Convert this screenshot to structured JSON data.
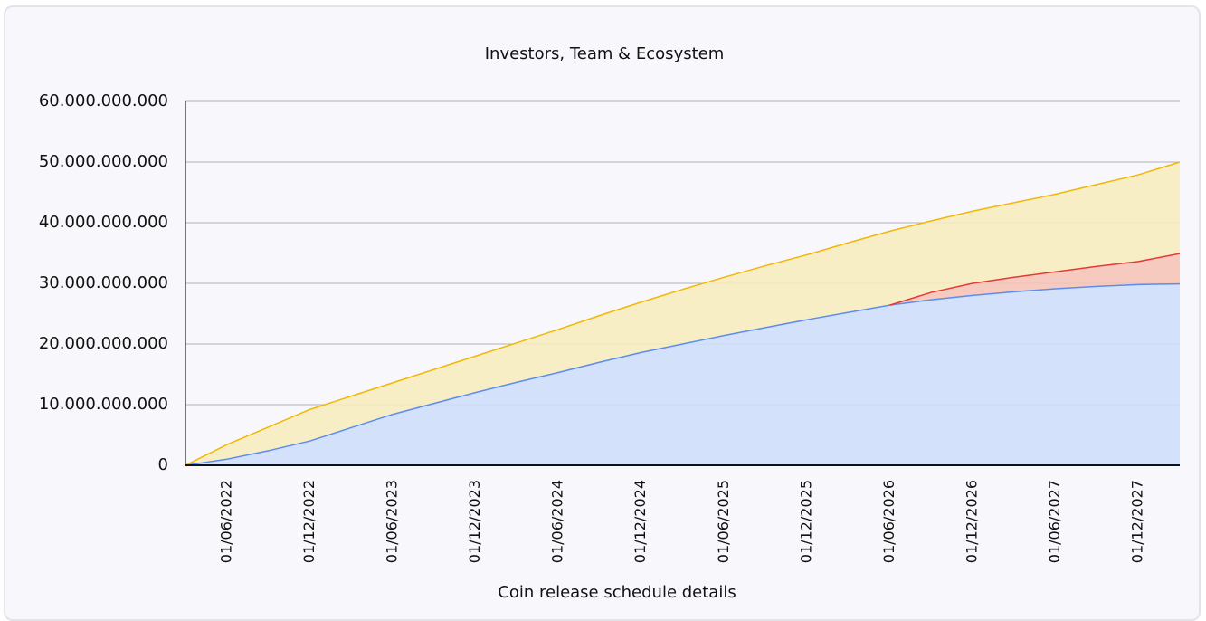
{
  "chart_data": {
    "type": "stacked_area",
    "title": "Investors, Team & Ecosystem",
    "x_label": "Coin release schedule details",
    "categories": [
      null,
      "01/06/2022",
      null,
      "01/12/2022",
      null,
      "01/06/2023",
      null,
      "01/12/2023",
      null,
      "01/06/2024",
      null,
      "01/12/2024",
      null,
      "01/06/2025",
      null,
      "01/12/2025",
      null,
      "01/06/2026",
      null,
      "01/12/2026",
      null,
      "01/06/2027",
      null,
      "01/12/2027",
      null
    ],
    "series": [
      {
        "color": "#5b8def",
        "fill": "#cfdefa",
        "values": [
          0,
          1000000000,
          2400000000,
          4000000000,
          6200000000,
          8400000000,
          10200000000,
          12000000000,
          13700000000,
          15300000000,
          17000000000,
          18600000000,
          20000000000,
          21400000000,
          22700000000,
          24000000000,
          25200000000,
          26400000000,
          27300000000,
          28000000000,
          28600000000,
          29100000000,
          29500000000,
          29800000000,
          29900000000
        ]
      },
      {
        "color": "#e53935",
        "fill": "#f5c4b8",
        "values": [
          0,
          0,
          0,
          0,
          0,
          0,
          0,
          0,
          0,
          0,
          0,
          0,
          0,
          0,
          0,
          0,
          0,
          0,
          1200000000,
          2000000000,
          2400000000,
          2800000000,
          3300000000,
          3800000000,
          5000000000
        ]
      },
      {
        "color": "#f2b705",
        "fill": "#f7ecc0",
        "values": [
          0,
          2400000000,
          3900000000,
          5200000000,
          5200000000,
          5200000000,
          5600000000,
          6000000000,
          6500000000,
          7100000000,
          7700000000,
          8300000000,
          9000000000,
          9600000000,
          10200000000,
          10700000000,
          11500000000,
          12200000000,
          11800000000,
          11900000000,
          12300000000,
          12800000000,
          13500000000,
          14300000000,
          15100000000
        ]
      }
    ],
    "ylim": [
      0,
      60000000000
    ],
    "yticks": [
      0,
      {
        "value": 10000000000,
        "label": "10.000.000.000"
      },
      {
        "value": 20000000000,
        "label": "20.000.000.000"
      },
      {
        "value": 30000000000,
        "label": "30.000.000.000"
      },
      {
        "value": 40000000000,
        "label": "40.000.000.000"
      },
      {
        "value": 50000000000,
        "label": "50.000.000.000"
      },
      {
        "value": 60000000000,
        "label": "60.000.000.000"
      }
    ],
    "grid": true
  }
}
